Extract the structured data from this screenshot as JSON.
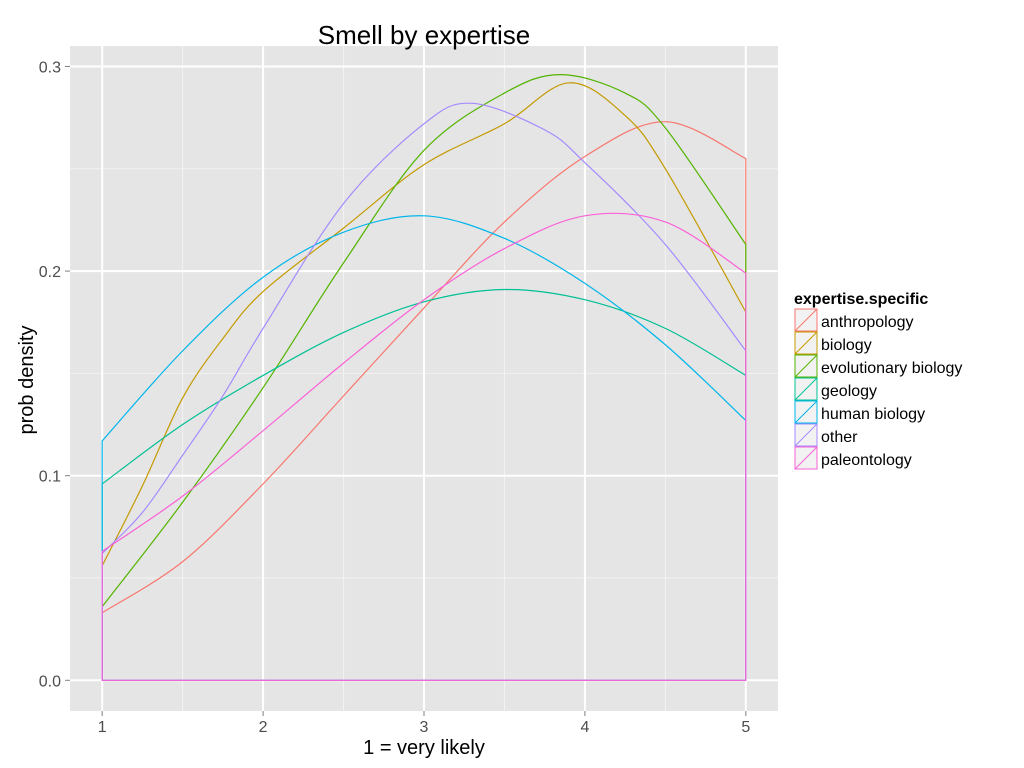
{
  "chart_data": {
    "type": "line",
    "title": "Smell  by expertise",
    "xlabel": "1 = very likely",
    "ylabel": "prob density",
    "xlim": [
      0.8,
      5.2
    ],
    "ylim": [
      -0.015,
      0.31
    ],
    "x_ticks": [
      1,
      2,
      3,
      4,
      5
    ],
    "x_tick_labels": [
      "1",
      "2",
      "3",
      "4",
      "5"
    ],
    "y_ticks": [
      0.0,
      0.1,
      0.2,
      0.3
    ],
    "y_tick_labels": [
      "0.0",
      "0.1",
      "0.2",
      "0.3"
    ],
    "grid": true,
    "legend_title": "expertise.specific",
    "legend_position": "right",
    "fill": "none",
    "series": [
      {
        "name": "anthropology",
        "color": "#F8766D",
        "x": [
          1,
          1.5,
          2,
          2.5,
          3,
          3.5,
          4,
          4.5,
          5
        ],
        "y": [
          0.033,
          0.058,
          0.096,
          0.139,
          0.182,
          0.224,
          0.256,
          0.273,
          0.255
        ]
      },
      {
        "name": "biology",
        "color": "#C49A00",
        "x": [
          1,
          1.25,
          1.5,
          1.75,
          2,
          2.5,
          3,
          3.5,
          3.9,
          4.25,
          4.5,
          5
        ],
        "y": [
          0.056,
          0.095,
          0.138,
          0.167,
          0.19,
          0.221,
          0.252,
          0.272,
          0.292,
          0.276,
          0.25,
          0.18
        ]
      },
      {
        "name": "evolutionary biology",
        "color": "#53B400",
        "x": [
          1,
          1.5,
          2,
          2.5,
          3,
          3.5,
          3.85,
          4.25,
          4.5,
          5
        ],
        "y": [
          0.036,
          0.087,
          0.143,
          0.204,
          0.259,
          0.287,
          0.296,
          0.287,
          0.27,
          0.213
        ]
      },
      {
        "name": "geology",
        "color": "#00C094",
        "x": [
          1,
          1.5,
          2,
          2.5,
          3,
          3.5,
          4,
          4.5,
          5
        ],
        "y": [
          0.096,
          0.125,
          0.149,
          0.17,
          0.185,
          0.191,
          0.186,
          0.172,
          0.149
        ]
      },
      {
        "name": "human biology",
        "color": "#00B6EB",
        "x": [
          1,
          1.5,
          2,
          2.5,
          3,
          3.5,
          4,
          4.5,
          5
        ],
        "y": [
          0.117,
          0.161,
          0.197,
          0.219,
          0.227,
          0.216,
          0.194,
          0.164,
          0.127
        ]
      },
      {
        "name": "other",
        "color": "#A58AFF",
        "x": [
          1,
          1.25,
          1.5,
          1.75,
          2,
          2.5,
          3,
          3.3,
          3.75,
          4,
          4.5,
          5
        ],
        "y": [
          0.062,
          0.082,
          0.11,
          0.139,
          0.172,
          0.233,
          0.272,
          0.282,
          0.269,
          0.253,
          0.213,
          0.161
        ]
      },
      {
        "name": "paleontology",
        "color": "#FB61D7",
        "x": [
          1,
          1.5,
          2,
          2.5,
          3,
          3.5,
          4,
          4.5,
          5
        ],
        "y": [
          0.063,
          0.09,
          0.122,
          0.155,
          0.186,
          0.211,
          0.227,
          0.224,
          0.199
        ]
      }
    ]
  }
}
